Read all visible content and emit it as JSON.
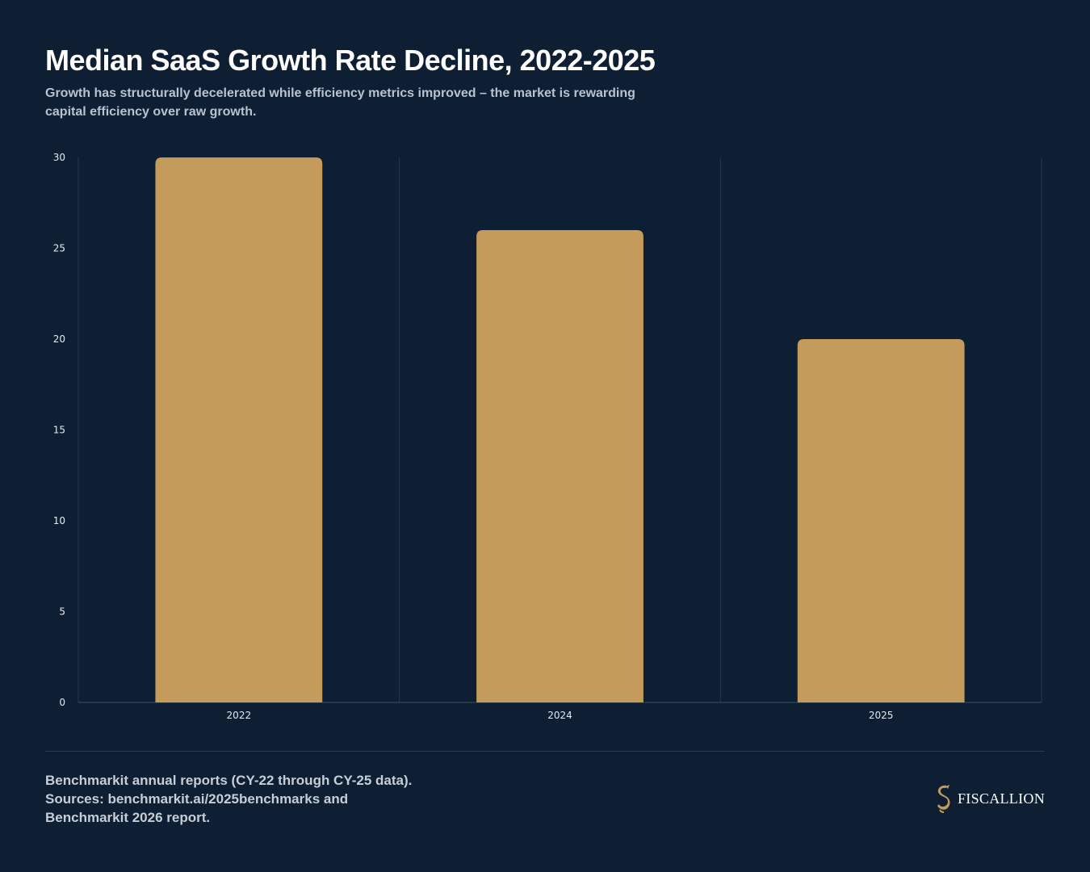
{
  "title": "Median SaaS Growth Rate Decline, 2022-2025",
  "subtitle": "Growth has structurally decelerated while efficiency metrics improved – the market is rewarding capital efficiency over raw growth.",
  "source": {
    "line1": "Benchmarkit annual reports (CY-22 through CY-25 data).",
    "line2": "Sources: benchmarkit.ai/2025benchmarks and Benchmarkit 2026 report."
  },
  "brand": {
    "name": "FISCALLION",
    "logo_icon": "seahorse-s-logo-icon"
  },
  "colors": {
    "background": "#0e1f33",
    "bar": "#c49b5b",
    "grid": "#25384d",
    "axis_text": "#e6e9ee"
  },
  "chart_data": {
    "type": "bar",
    "categories": [
      "2022",
      "2024",
      "2025"
    ],
    "values": [
      30,
      26,
      20
    ],
    "title": "Median SaaS Growth Rate Decline, 2022-2025",
    "xlabel": "",
    "ylabel": "",
    "ylim": [
      0,
      30
    ],
    "yticks": [
      0,
      5,
      10,
      15,
      20,
      25,
      30
    ],
    "grid": true,
    "legend": "none"
  }
}
